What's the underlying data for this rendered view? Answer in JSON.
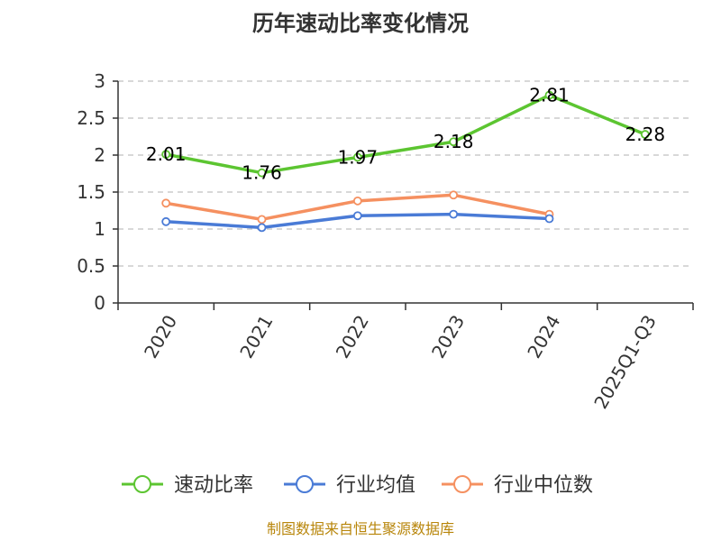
{
  "chart_data": {
    "type": "line",
    "title": "历年速动比率变化情况",
    "categories": [
      "2020",
      "2021",
      "2022",
      "2023",
      "2024",
      "2025Q1-Q3"
    ],
    "ylim": [
      0,
      3
    ],
    "yticks": [
      "0",
      "0.5",
      "1",
      "1.5",
      "2",
      "2.5",
      "3"
    ],
    "grid": true,
    "legend_position": "bottom",
    "series": [
      {
        "name": "速动比率",
        "color": "#5cc531",
        "values": [
          2.01,
          1.76,
          1.97,
          2.18,
          2.81,
          2.28
        ],
        "labels": [
          "2.01",
          "1.76",
          "1.97",
          "2.18",
          "2.81",
          "2.28"
        ]
      },
      {
        "name": "行业均值",
        "color": "#4a7bd6",
        "values": [
          1.1,
          1.02,
          1.18,
          1.2,
          1.14,
          null
        ]
      },
      {
        "name": "行业中位数",
        "color": "#f59060",
        "values": [
          1.35,
          1.13,
          1.38,
          1.46,
          1.2,
          null
        ]
      }
    ]
  },
  "source": "制图数据来自恒生聚源数据库"
}
